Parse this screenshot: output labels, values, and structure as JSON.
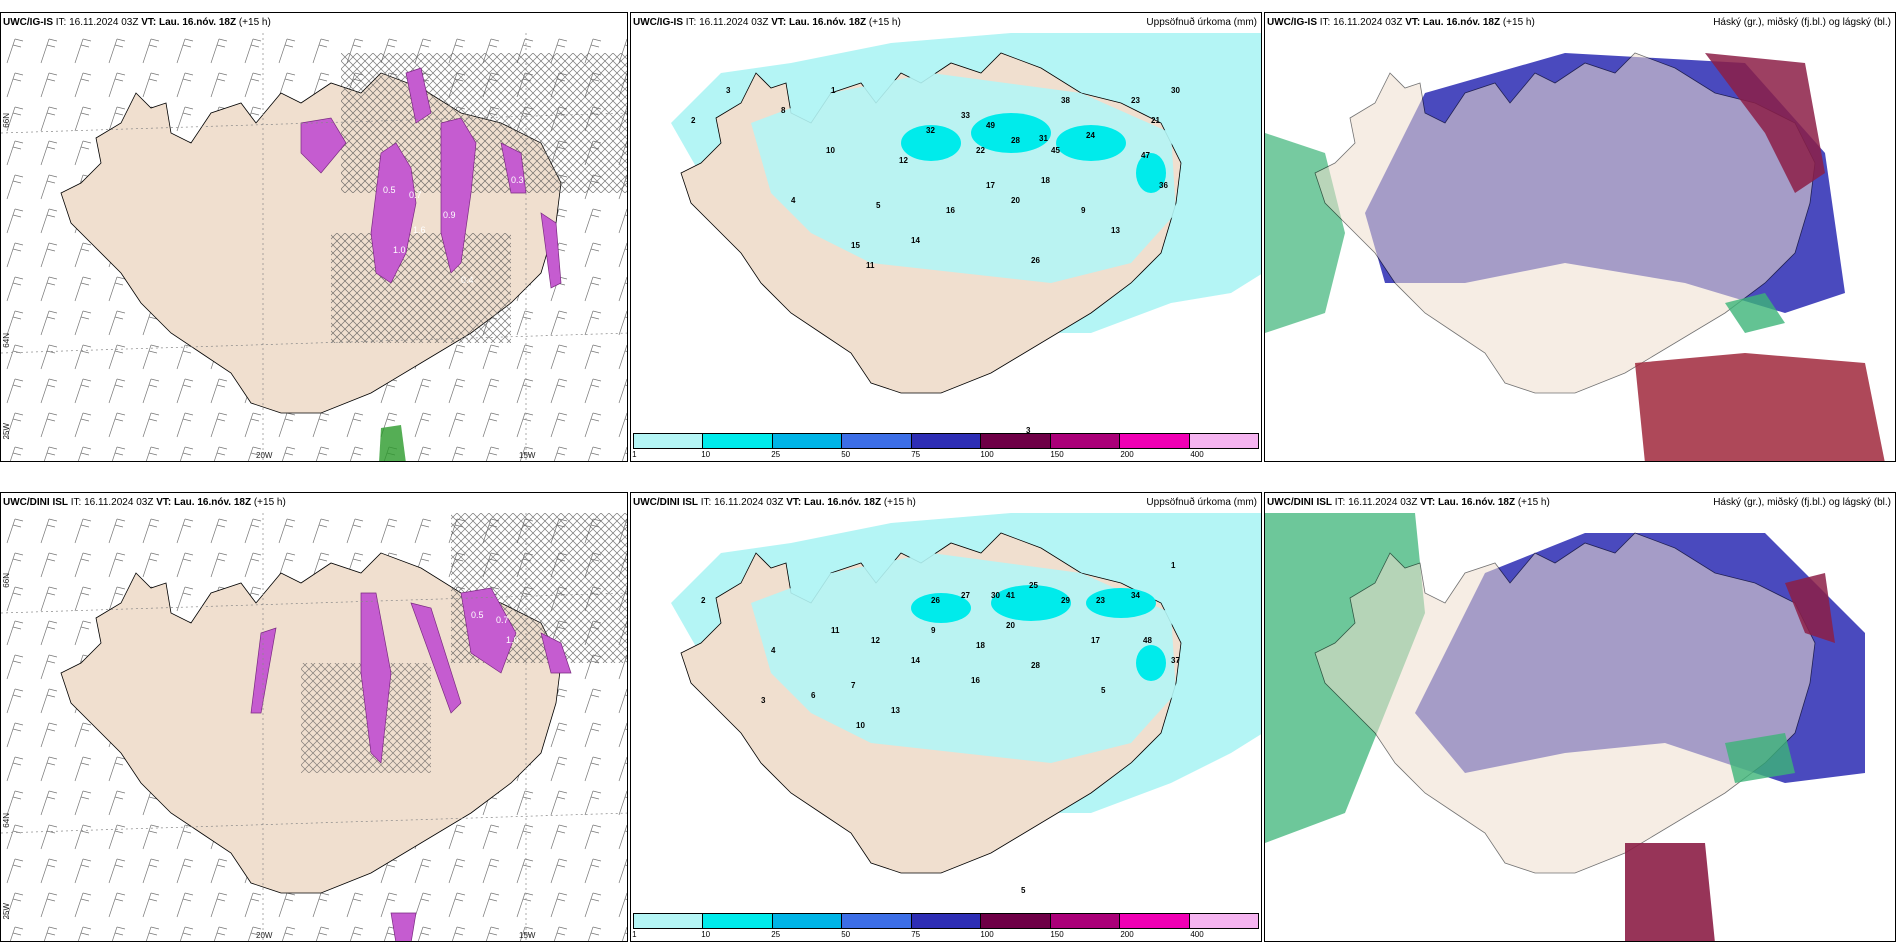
{
  "header_common": {
    "it_label": "IT: 16.11.2024 03Z",
    "vt_label": "VT: Lau. 16.nóv. 18Z",
    "lead": "(+15 h)"
  },
  "rows": [
    {
      "model": "UWC/IG-IS",
      "precip_numbers": [
        "1",
        "2",
        "3",
        "4",
        "5",
        "8",
        "9",
        "10",
        "11",
        "12",
        "13",
        "14",
        "15",
        "16",
        "17",
        "18",
        "20",
        "21",
        "22",
        "23",
        "24",
        "26",
        "28",
        "30",
        "31",
        "32",
        "33",
        "36",
        "38",
        "45",
        "47",
        "49"
      ],
      "bottom_number": "3"
    },
    {
      "model": "UWC/DINI ISL",
      "precip_numbers": [
        "1",
        "2",
        "3",
        "4",
        "5",
        "6",
        "7",
        "9",
        "10",
        "11",
        "12",
        "13",
        "14",
        "16",
        "17",
        "18",
        "20",
        "23",
        "25",
        "26",
        "27",
        "28",
        "29",
        "30",
        "34",
        "37",
        "41",
        "48"
      ],
      "bottom_number": "5"
    }
  ],
  "precip_title": "Uppsöfnuð úrkoma (mm)",
  "cloud_title": "Háský (gr.), miðský (fj.bl.) og lágský (bl.)",
  "axis_labels": {
    "lon_20w": "20W",
    "lon_15w": "15W",
    "lon_25w": "25W",
    "lat_66n": "66N",
    "lat_64n": "64N"
  },
  "colorbar": {
    "colors": [
      "#b4f5f5",
      "#00ebeb",
      "#00b4e6",
      "#3c6ee6",
      "#2d2db4",
      "#6e0046",
      "#aa0078",
      "#f000b4",
      "#f5b4f0"
    ],
    "ticks": [
      "1",
      "10",
      "25",
      "50",
      "75",
      "100",
      "150",
      "200",
      "400"
    ]
  },
  "icing_values": [
    "0.5",
    "0.7",
    "0.9",
    "1.0",
    "1.6",
    "0.4",
    "0.3"
  ]
}
